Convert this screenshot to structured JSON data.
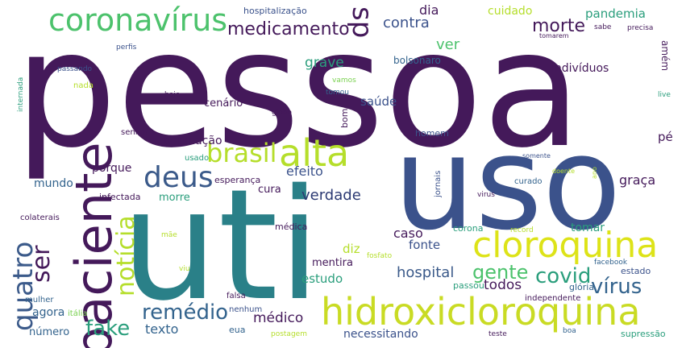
{
  "palette": {
    "purple": "#44195a",
    "indigo": "#3b528b",
    "blue": "#33638d",
    "slate": "#3b5a8a",
    "teal": "#21918c",
    "seagreen": "#2a9e7c",
    "green": "#4cc26c",
    "lime": "#7ad151",
    "yellowgreen": "#b5de2b",
    "yellow": "#dde318",
    "navy": "#2c3a73"
  },
  "words": [
    {
      "text": "pessoa",
      "size": 200,
      "color": "#44195a",
      "rot": 0
    },
    {
      "text": "uso",
      "size": 160,
      "color": "#3b528b",
      "rot": 0
    },
    {
      "text": "uti",
      "size": 190,
      "color": "#2a8088",
      "rot": 0
    },
    {
      "text": "paciente",
      "size": 62,
      "color": "#44195a",
      "rot": -90
    },
    {
      "text": "hidroxicloroquina",
      "size": 46,
      "color": "#c9db24",
      "rot": 0
    },
    {
      "text": "cloroquina",
      "size": 44,
      "color": "#dde318",
      "rot": 0
    },
    {
      "text": "alta",
      "size": 46,
      "color": "#b5de2b",
      "rot": 0
    },
    {
      "text": "coronavírus",
      "size": 38,
      "color": "#4cc26c",
      "rot": 0
    },
    {
      "text": "quatro",
      "size": 34,
      "color": "#3b5a8a",
      "rot": -90
    },
    {
      "text": "deus",
      "size": 36,
      "color": "#3b5a8a",
      "rot": 0
    },
    {
      "text": "brasil",
      "size": 32,
      "color": "#b5de2b",
      "rot": 0
    },
    {
      "text": "sp",
      "size": 34,
      "color": "#44195a",
      "rot": 90
    },
    {
      "text": "ser",
      "size": 30,
      "color": "#44195a",
      "rot": -90
    },
    {
      "text": "notícia",
      "size": 30,
      "color": "#b5de2b",
      "rot": -90
    },
    {
      "text": "remédio",
      "size": 26,
      "color": "#33638d",
      "rot": 0
    },
    {
      "text": "covid",
      "size": 26,
      "color": "#2a9e7c",
      "rot": 0
    },
    {
      "text": "vírus",
      "size": 26,
      "color": "#33638d",
      "rot": 0
    },
    {
      "text": "gente",
      "size": 24,
      "color": "#4cc26c",
      "rot": 0
    },
    {
      "text": "fake",
      "size": 26,
      "color": "#2a9e7c",
      "rot": 0
    },
    {
      "text": "medicamento",
      "size": 22,
      "color": "#44195a",
      "rot": 0
    },
    {
      "text": "morte",
      "size": 22,
      "color": "#44195a",
      "rot": 0
    },
    {
      "text": "verdade",
      "size": 18,
      "color": "#2c3a73",
      "rot": 0
    },
    {
      "text": "hospital",
      "size": 18,
      "color": "#3b5a8a",
      "rot": 0
    },
    {
      "text": "contra",
      "size": 18,
      "color": "#3b528b",
      "rot": 0
    },
    {
      "text": "ver",
      "size": 18,
      "color": "#4cc26c",
      "rot": 0
    },
    {
      "text": "pandemia",
      "size": 15,
      "color": "#2a9e7c",
      "rot": 0
    },
    {
      "text": "efeito",
      "size": 16,
      "color": "#3b528b",
      "rot": 0
    },
    {
      "text": "grave",
      "size": 17,
      "color": "#2a9e7c",
      "rot": 0
    },
    {
      "text": "dia",
      "size": 16,
      "color": "#44195a",
      "rot": 0
    },
    {
      "text": "todos",
      "size": 17,
      "color": "#44195a",
      "rot": 0
    },
    {
      "text": "cuidado",
      "size": 14,
      "color": "#b5de2b",
      "rot": 0
    },
    {
      "text": "médico",
      "size": 17,
      "color": "#44195a",
      "rot": 0
    },
    {
      "text": "saúde",
      "size": 15,
      "color": "#3b528b",
      "rot": 0
    },
    {
      "text": "caso",
      "size": 16,
      "color": "#44195a",
      "rot": 0
    },
    {
      "text": "fonte",
      "size": 15,
      "color": "#3b528b",
      "rot": 0
    },
    {
      "text": "diz",
      "size": 15,
      "color": "#b5de2b",
      "rot": 0
    },
    {
      "text": "estudo",
      "size": 15,
      "color": "#2a9e7c",
      "rot": 0
    },
    {
      "text": "texto",
      "size": 16,
      "color": "#33638d",
      "rot": 0
    },
    {
      "text": "graça",
      "size": 16,
      "color": "#44195a",
      "rot": 0
    },
    {
      "text": "tomar",
      "size": 14,
      "color": "#2a9e7c",
      "rot": 0
    },
    {
      "text": "pé",
      "size": 15,
      "color": "#44195a",
      "rot": 0
    },
    {
      "text": "população",
      "size": 14,
      "color": "#44195a",
      "rot": 0
    },
    {
      "text": "porque",
      "size": 14,
      "color": "#44195a",
      "rot": 0
    },
    {
      "text": "mundo",
      "size": 14,
      "color": "#33638d",
      "rot": 0
    },
    {
      "text": "agora",
      "size": 14,
      "color": "#33638d",
      "rot": 0
    },
    {
      "text": "necessitando",
      "size": 14,
      "color": "#3b528b",
      "rot": 0
    },
    {
      "text": "indivíduos",
      "size": 14,
      "color": "#44195a",
      "rot": 0
    },
    {
      "text": "cura",
      "size": 13,
      "color": "#44195a",
      "rot": 0
    },
    {
      "text": "morre",
      "size": 13,
      "color": "#2a9e7c",
      "rot": 0
    },
    {
      "text": "mentira",
      "size": 13,
      "color": "#44195a",
      "rot": 0
    },
    {
      "text": "número",
      "size": 13,
      "color": "#33638d",
      "rot": 0
    },
    {
      "text": "cenário",
      "size": 13,
      "color": "#44195a",
      "rot": 0
    },
    {
      "text": "bolsonaro",
      "size": 12,
      "color": "#33638d",
      "rot": 0
    },
    {
      "text": "hospitalização",
      "size": 11,
      "color": "#3b528b",
      "rot": 0
    },
    {
      "text": "amém",
      "size": 12,
      "color": "#44195a",
      "rot": 90
    },
    {
      "text": "bom",
      "size": 11,
      "color": "#44195a",
      "rot": -90
    },
    {
      "text": "homem",
      "size": 11,
      "color": "#3b528b",
      "rot": 0
    },
    {
      "text": "infectada",
      "size": 11,
      "color": "#44195a",
      "rot": 0
    },
    {
      "text": "esperança",
      "size": 11,
      "color": "#44195a",
      "rot": 0
    },
    {
      "text": "corona",
      "size": 11,
      "color": "#2a9e7c",
      "rot": 0
    },
    {
      "text": "médica",
      "size": 11,
      "color": "#44195a",
      "rot": 0
    },
    {
      "text": "eua",
      "size": 11,
      "color": "#33638d",
      "rot": 0
    },
    {
      "text": "passou",
      "size": 11,
      "color": "#2a9e7c",
      "rot": 0
    },
    {
      "text": "glória",
      "size": 11,
      "color": "#33638d",
      "rot": 0
    },
    {
      "text": "estado",
      "size": 11,
      "color": "#3b528b",
      "rot": 0
    },
    {
      "text": "supressão",
      "size": 11,
      "color": "#2a9e7c",
      "rot": 0
    },
    {
      "text": "nenhum",
      "size": 10,
      "color": "#3b528b",
      "rot": 0
    },
    {
      "text": "falsa",
      "size": 10,
      "color": "#44195a",
      "rot": 0
    },
    {
      "text": "independente",
      "size": 10,
      "color": "#44195a",
      "rot": 0
    },
    {
      "text": "jornais",
      "size": 10,
      "color": "#3b528b",
      "rot": -90
    },
    {
      "text": "senhor",
      "size": 10,
      "color": "#44195a",
      "rot": 0
    },
    {
      "text": "usado",
      "size": 10,
      "color": "#2a9e7c",
      "rot": 0
    },
    {
      "text": "curado",
      "size": 10,
      "color": "#33638d",
      "rot": 0
    },
    {
      "text": "colaterais",
      "size": 10,
      "color": "#44195a",
      "rot": 0
    },
    {
      "text": "mulher",
      "size": 10,
      "color": "#33638d",
      "rot": 0
    },
    {
      "text": "itália",
      "size": 10,
      "color": "#7ad151",
      "rot": 0
    },
    {
      "text": "postagem",
      "size": 9,
      "color": "#b5de2b",
      "rot": 0
    },
    {
      "text": "viu",
      "size": 9,
      "color": "#b5de2b",
      "rot": 0
    },
    {
      "text": "mãe",
      "size": 9,
      "color": "#b5de2b",
      "rot": 0
    },
    {
      "text": "record",
      "size": 9,
      "color": "#b5de2b",
      "rot": 0
    },
    {
      "text": "fosfato",
      "size": 9,
      "color": "#b5de2b",
      "rot": 0
    },
    {
      "text": "facebook",
      "size": 9,
      "color": "#33638d",
      "rot": 0
    },
    {
      "text": "virus",
      "size": 9,
      "color": "#44195a",
      "rot": 0
    },
    {
      "text": "teste",
      "size": 9,
      "color": "#44195a",
      "rot": 0
    },
    {
      "text": "boa",
      "size": 9,
      "color": "#33638d",
      "rot": 0
    },
    {
      "text": "somente",
      "size": 8,
      "color": "#3b528b",
      "rot": 0
    },
    {
      "text": "doente",
      "size": 8,
      "color": "#b5de2b",
      "rot": 0
    },
    {
      "text": "ano",
      "size": 8,
      "color": "#b5de2b",
      "rot": -90
    },
    {
      "text": "globo",
      "size": 9,
      "color": "#44195a",
      "rot": 0
    },
    {
      "text": "tomou",
      "size": 9,
      "color": "#33638d",
      "rot": 0
    },
    {
      "text": "vamos",
      "size": 9,
      "color": "#7ad151",
      "rot": 0
    },
    {
      "text": "nada",
      "size": 10,
      "color": "#b5de2b",
      "rot": 0
    },
    {
      "text": "hoje",
      "size": 9,
      "color": "#44195a",
      "rot": 0
    },
    {
      "text": "passando",
      "size": 9,
      "color": "#3b528b",
      "rot": 0
    },
    {
      "text": "perfis",
      "size": 9,
      "color": "#3b528b",
      "rot": 0
    },
    {
      "text": "internada",
      "size": 9,
      "color": "#2a9e7c",
      "rot": -90
    },
    {
      "text": "tomarem",
      "size": 8,
      "color": "#44195a",
      "rot": 0
    },
    {
      "text": "sabe",
      "size": 9,
      "color": "#44195a",
      "rot": 0
    },
    {
      "text": "precisa",
      "size": 9,
      "color": "#44195a",
      "rot": 0
    },
    {
      "text": "live",
      "size": 9,
      "color": "#2a9e7c",
      "rot": 0
    }
  ]
}
